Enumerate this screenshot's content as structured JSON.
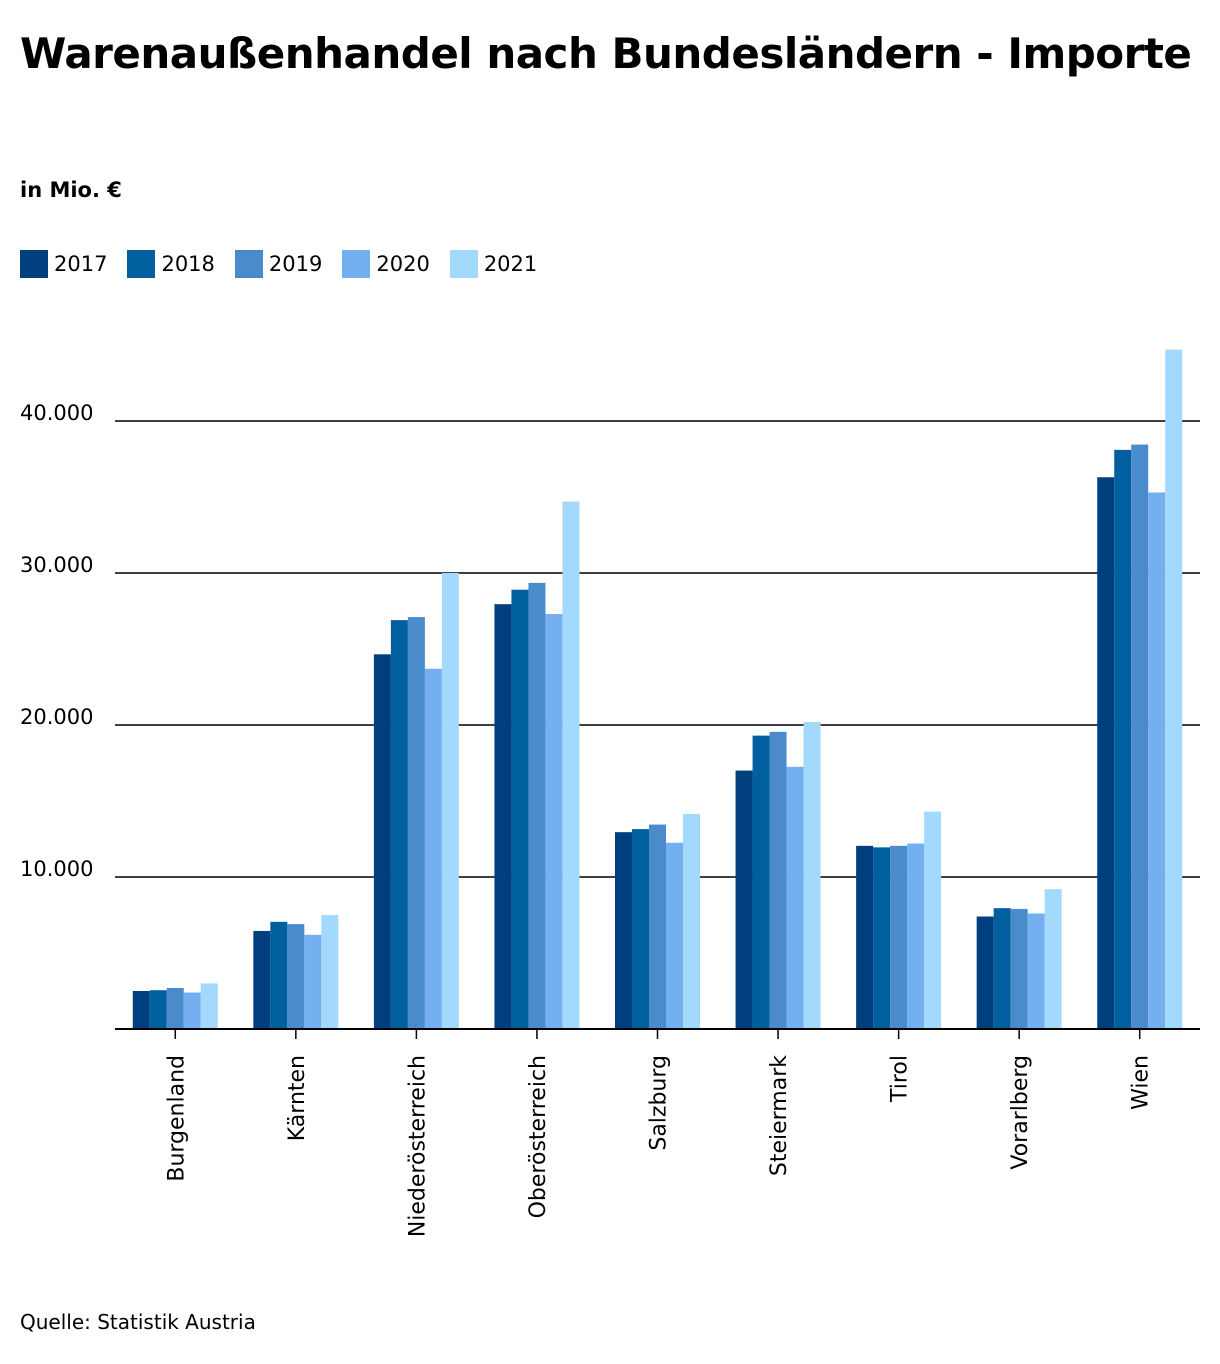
{
  "chart_data": {
    "type": "bar",
    "title": "Warenaußenhandel nach Bundesländern - Importe",
    "subtitle": "in Mio. €",
    "xlabel": "",
    "ylabel": "",
    "ylim": [
      0,
      45000
    ],
    "yticks": [
      10000,
      20000,
      30000,
      40000
    ],
    "ytick_labels": [
      "10.000",
      "20.000",
      "30.000",
      "40.000"
    ],
    "grid": true,
    "legend_position": "top-left",
    "categories": [
      "Burgenland",
      "Kärnten",
      "Niederösterreich",
      "Oberösterreich",
      "Salzburg",
      "Steiermark",
      "Tirol",
      "Vorarlberg",
      "Wien"
    ],
    "series": [
      {
        "name": "2017",
        "color": "#003f7d",
        "values": [
          2500,
          6450,
          24650,
          27950,
          12950,
          17000,
          12050,
          7400,
          36300
        ]
      },
      {
        "name": "2018",
        "color": "#00609f",
        "values": [
          2550,
          7050,
          26900,
          28900,
          13150,
          19300,
          11950,
          7950,
          38100
        ]
      },
      {
        "name": "2019",
        "color": "#4a8bcb",
        "values": [
          2700,
          6900,
          27100,
          29350,
          13450,
          19550,
          12050,
          7900,
          38450
        ]
      },
      {
        "name": "2020",
        "color": "#74b0ef",
        "values": [
          2400,
          6200,
          23700,
          27300,
          12250,
          17250,
          12200,
          7600,
          35300
        ]
      },
      {
        "name": "2021",
        "color": "#a3d9fd",
        "values": [
          3000,
          7500,
          30000,
          34700,
          14150,
          20200,
          14300,
          9200,
          44700
        ]
      }
    ]
  },
  "source": "Quelle: Statistik Austria"
}
